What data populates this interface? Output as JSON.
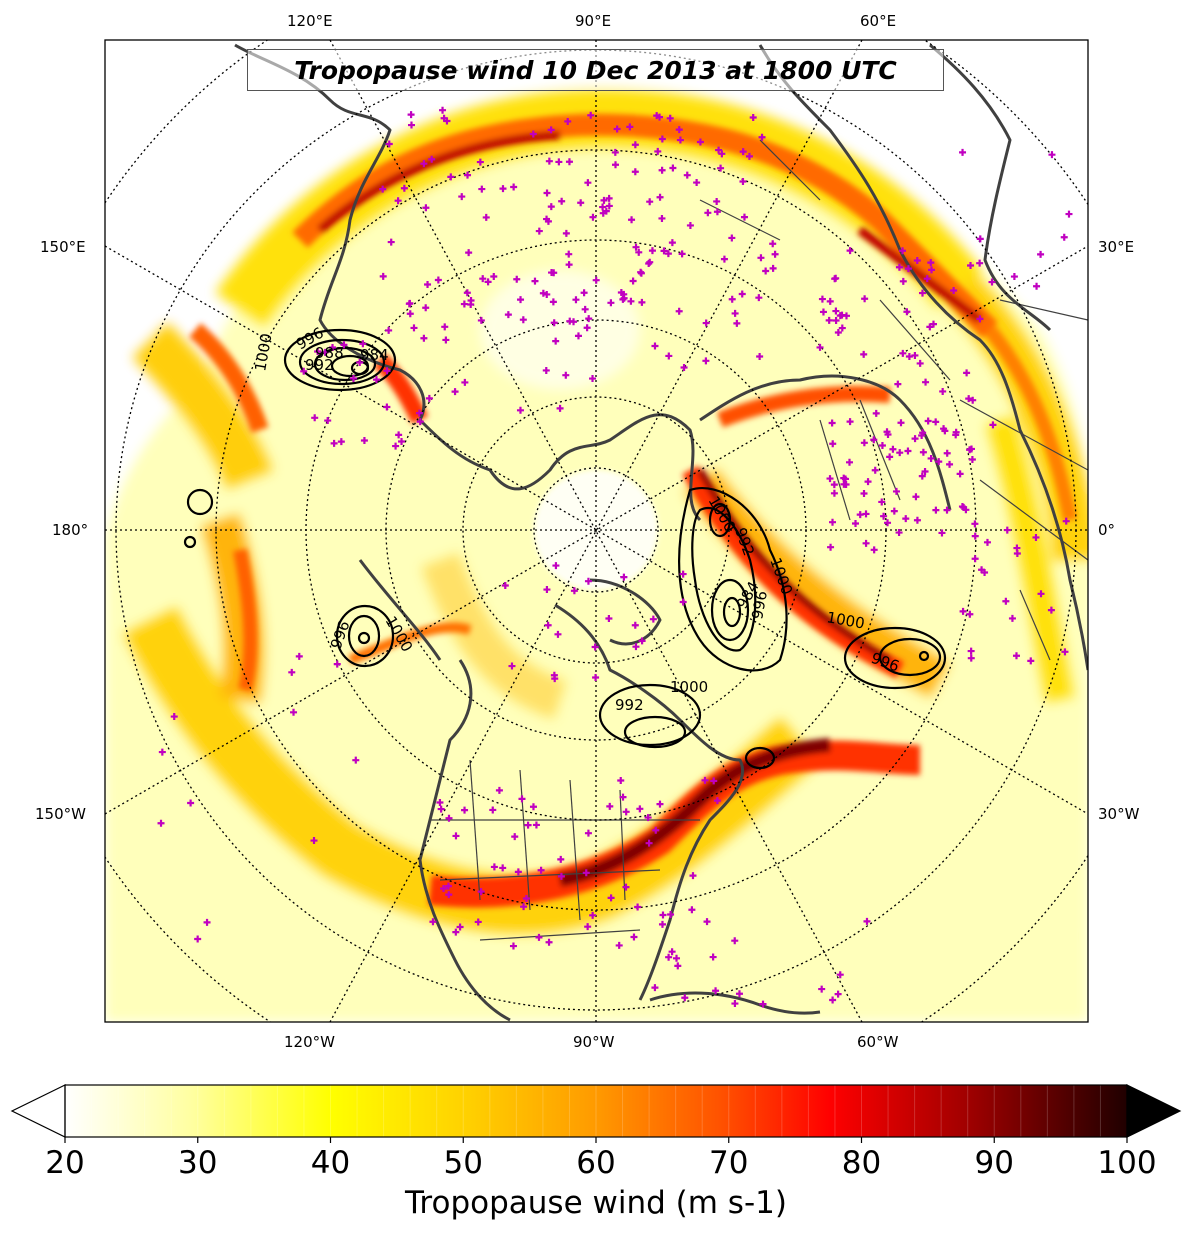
{
  "title": "Tropopause wind 10 Dec 2013 at 1800 UTC",
  "top_labels": [
    "120°E",
    "90°E",
    "60°E"
  ],
  "bottom_labels": [
    "120°W",
    "90°W",
    "60°W"
  ],
  "left_labels": [
    "150°E",
    "180°",
    "150°W"
  ],
  "right_labels": [
    "30°E",
    "0°",
    "30°W"
  ],
  "colorbar": {
    "label": "Tropopause wind (m s-1)",
    "ticks": [
      "20",
      "30",
      "40",
      "50",
      "60",
      "70",
      "80",
      "90",
      "100"
    ],
    "min": 20,
    "max": 100,
    "extend": "both",
    "colors": [
      "#ffffff",
      "#ffff80",
      "#ffff00",
      "#ffd000",
      "#ff9a00",
      "#ff5a00",
      "#ff0000",
      "#c00000",
      "#700000",
      "#000000"
    ]
  },
  "pressure_contour_labels": [
    "1000",
    "996",
    "992",
    "988",
    "984",
    "1000",
    "992",
    "1000",
    "996",
    "1000",
    "996",
    "1000",
    "996",
    "992",
    "1000",
    "996"
  ],
  "colors": {
    "coastline": "#404040",
    "station_marker": "#c000c0",
    "contour": "#000000",
    "graticule": "#000000"
  }
}
